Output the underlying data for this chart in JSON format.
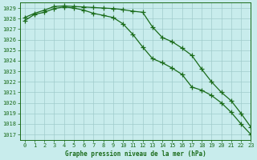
{
  "line1_x": [
    0,
    1,
    2,
    3,
    4,
    5,
    6,
    7,
    8,
    9,
    10,
    11,
    12,
    13,
    14,
    15,
    16,
    17,
    18,
    19,
    20,
    21,
    22,
    23
  ],
  "line1_y": [
    1028.1,
    1028.5,
    1028.8,
    1029.15,
    1029.2,
    1029.15,
    1029.1,
    1029.05,
    1029.0,
    1028.95,
    1028.85,
    1028.7,
    1028.6,
    1027.2,
    1026.2,
    1025.8,
    1025.2,
    1024.5,
    1023.2,
    1022.0,
    1021.0,
    1020.2,
    1019.0,
    1017.7
  ],
  "line2_x": [
    0,
    1,
    2,
    3,
    4,
    5,
    6,
    7,
    8,
    9,
    10,
    11,
    12,
    13,
    14,
    15,
    16,
    17,
    18,
    19,
    20,
    21,
    22,
    23
  ],
  "line2_y": [
    1027.8,
    1028.4,
    1028.6,
    1028.95,
    1029.1,
    1029.0,
    1028.8,
    1028.5,
    1028.3,
    1028.1,
    1027.5,
    1026.5,
    1025.3,
    1024.2,
    1023.8,
    1023.3,
    1022.7,
    1021.5,
    1021.2,
    1020.7,
    1020.0,
    1019.1,
    1018.0,
    1017.0
  ],
  "line_color": "#1a6b1a",
  "bg_color": "#c8ecec",
  "grid_color": "#a0cccc",
  "xlabel": "Graphe pression niveau de la mer (hPa)",
  "ylim": [
    1016.5,
    1029.5
  ],
  "xlim": [
    -0.5,
    23
  ],
  "yticks": [
    1017,
    1018,
    1019,
    1020,
    1021,
    1022,
    1023,
    1024,
    1025,
    1026,
    1027,
    1028,
    1029
  ],
  "xticks": [
    0,
    1,
    2,
    3,
    4,
    5,
    6,
    7,
    8,
    9,
    10,
    11,
    12,
    13,
    14,
    15,
    16,
    17,
    18,
    19,
    20,
    21,
    22,
    23
  ],
  "marker": "+",
  "markersize": 4,
  "linewidth": 0.9,
  "tick_fontsize": 5,
  "xlabel_fontsize": 5.5
}
